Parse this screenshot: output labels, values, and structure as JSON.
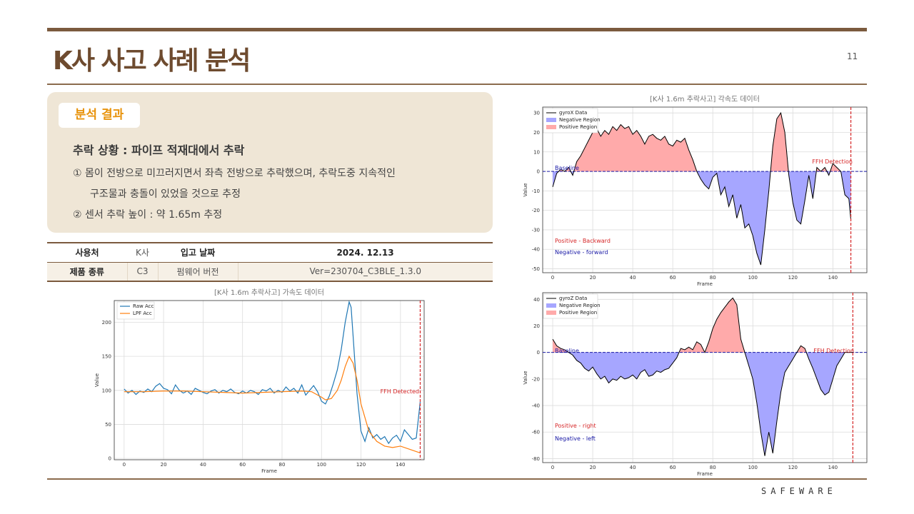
{
  "page": {
    "title": "K사 사고 사례 분석",
    "page_number": "11",
    "logo": "SAFEWARE"
  },
  "analysis": {
    "tag": "분석 결과",
    "heading": "추락 상황 : 파이프 적재대에서 추락",
    "items": [
      "①  몸이 전방으로 미끄러지면서 좌측 전방으로 추락했으며, 추락도중 지속적인",
      "구조물과 충돌이 있었을 것으로 추정",
      "②  센서 추락 높이 : 약 1.65m 추정"
    ]
  },
  "info_table": {
    "rows": [
      [
        "사용처",
        "K사",
        "입고 날짜",
        "2024. 12.13"
      ],
      [
        "제품 종류",
        "C3",
        "펌웨어 버전",
        "Ver=230704_C3BLE_1.3.0"
      ]
    ]
  },
  "colors": {
    "accent": "#7b5a3e",
    "tag": "#e8930c",
    "panel": "#efe6d6",
    "raw": "#1f77b4",
    "lpf": "#ff7f0e",
    "neg": "#a6a6ff",
    "pos": "#ffaaaa"
  },
  "chart_data": [
    {
      "type": "line",
      "title": "[K사 1.6m 추락사고] 가속도 데이터",
      "xlabel": "Frame",
      "ylabel": "Value",
      "xlim": [
        -5,
        152
      ],
      "ylim": [
        -2,
        232
      ],
      "xticks": [
        0,
        20,
        40,
        60,
        80,
        100,
        120,
        140
      ],
      "yticks": [
        0,
        50,
        100,
        150,
        200
      ],
      "series": [
        {
          "name": "Raw Acc",
          "x": [
            0,
            2,
            4,
            6,
            8,
            10,
            12,
            14,
            16,
            18,
            20,
            22,
            24,
            26,
            28,
            30,
            32,
            34,
            36,
            38,
            40,
            42,
            44,
            46,
            48,
            50,
            52,
            54,
            56,
            58,
            60,
            62,
            64,
            66,
            68,
            70,
            72,
            74,
            76,
            78,
            80,
            82,
            84,
            86,
            88,
            90,
            92,
            94,
            96,
            98,
            100,
            102,
            104,
            106,
            108,
            110,
            112,
            114,
            115,
            116,
            118,
            120,
            122,
            124,
            126,
            128,
            130,
            132,
            134,
            136,
            138,
            140,
            142,
            144,
            146,
            148,
            150
          ],
          "y": [
            102,
            96,
            100,
            94,
            99,
            97,
            102,
            98,
            106,
            110,
            103,
            101,
            95,
            108,
            100,
            96,
            99,
            94,
            103,
            100,
            97,
            95,
            99,
            101,
            96,
            100,
            98,
            102,
            97,
            95,
            99,
            96,
            100,
            98,
            94,
            101,
            99,
            103,
            96,
            100,
            97,
            105,
            99,
            103,
            96,
            108,
            93,
            100,
            107,
            98,
            84,
            80,
            92,
            110,
            130,
            160,
            200,
            230,
            222,
            180,
            95,
            40,
            25,
            45,
            30,
            35,
            28,
            32,
            22,
            30,
            34,
            25,
            42,
            35,
            28,
            30,
            83
          ]
        },
        {
          "name": "LPF Acc",
          "x": [
            0,
            10,
            20,
            30,
            40,
            50,
            60,
            70,
            80,
            90,
            95,
            100,
            102,
            105,
            108,
            110,
            112,
            114,
            116,
            118,
            120,
            124,
            128,
            132,
            136,
            140,
            145,
            150
          ],
          "y": [
            98,
            98,
            99,
            99,
            98,
            97,
            96,
            97,
            98,
            99,
            98,
            90,
            86,
            88,
            100,
            115,
            135,
            150,
            140,
            115,
            80,
            40,
            25,
            18,
            16,
            18,
            13,
            8
          ]
        }
      ],
      "annotations": [
        {
          "text": "FFH Detected",
          "x": 150,
          "line": "vertical",
          "color": "red"
        }
      ]
    },
    {
      "type": "area",
      "title": "[K사 1.6m 추락사고] 각속도 데이터",
      "xlabel": "Frame",
      "ylabel": "Value",
      "xlim": [
        -5,
        157
      ],
      "ylim": [
        -52,
        33
      ],
      "xticks": [
        0,
        20,
        40,
        60,
        80,
        100,
        120,
        140
      ],
      "yticks": [
        30,
        20,
        10,
        0,
        -10,
        -20,
        -30,
        -40,
        -50
      ],
      "baseline": 0,
      "series": [
        {
          "name": "gyroX Data",
          "x": [
            0,
            2,
            4,
            6,
            8,
            10,
            12,
            14,
            16,
            18,
            20,
            22,
            24,
            26,
            28,
            30,
            32,
            34,
            36,
            38,
            40,
            42,
            44,
            46,
            48,
            50,
            52,
            54,
            56,
            58,
            60,
            62,
            64,
            66,
            68,
            70,
            72,
            74,
            76,
            78,
            80,
            82,
            84,
            86,
            88,
            90,
            92,
            94,
            96,
            98,
            100,
            102,
            104,
            106,
            108,
            110,
            112,
            114,
            116,
            118,
            120,
            122,
            124,
            126,
            128,
            130,
            132,
            134,
            136,
            138,
            140,
            142,
            144,
            146,
            148,
            149
          ],
          "y": [
            -8,
            -1,
            1,
            0,
            2,
            -2,
            5,
            8,
            12,
            16,
            20,
            22,
            18,
            21,
            19,
            23,
            21,
            24,
            22,
            23,
            19,
            21,
            18,
            14,
            18,
            19,
            17,
            16,
            18,
            14,
            13,
            16,
            15,
            17,
            11,
            6,
            0,
            -4,
            -7,
            -9,
            -3,
            -1,
            -12,
            -8,
            -18,
            -12,
            -24,
            -17,
            -29,
            -27,
            -33,
            -42,
            -48,
            -30,
            -10,
            13,
            27,
            30,
            20,
            -2,
            -16,
            -25,
            -27,
            -15,
            -2,
            -14,
            2,
            0,
            2,
            -2,
            4,
            2,
            0,
            -12,
            -14,
            -25
          ]
        }
      ],
      "legend": [
        "gyroX Data",
        "Negative Region",
        "Positive Region"
      ],
      "annotations": [
        {
          "text": "Baseline",
          "color": "blue"
        },
        {
          "text": "FFH Detection",
          "x": 149,
          "line": "vertical",
          "color": "red"
        },
        {
          "text": "Positive - Backward",
          "color": "red"
        },
        {
          "text": "Negative - forward",
          "color": "blue"
        }
      ]
    },
    {
      "type": "area",
      "title": "",
      "xlabel": "Frame",
      "ylabel": "Value",
      "xlim": [
        -5,
        157
      ],
      "ylim": [
        -83,
        45
      ],
      "xticks": [
        0,
        20,
        40,
        60,
        80,
        100,
        120,
        140
      ],
      "yticks": [
        40,
        20,
        0,
        -20,
        -40,
        -60,
        -80
      ],
      "baseline": 0,
      "series": [
        {
          "name": "gyroZ Data",
          "x": [
            0,
            2,
            4,
            6,
            8,
            10,
            12,
            14,
            16,
            18,
            20,
            22,
            24,
            26,
            28,
            30,
            32,
            34,
            36,
            38,
            40,
            42,
            44,
            46,
            48,
            50,
            52,
            54,
            56,
            58,
            60,
            62,
            64,
            66,
            68,
            70,
            72,
            74,
            76,
            78,
            80,
            82,
            84,
            86,
            88,
            90,
            92,
            94,
            96,
            98,
            100,
            102,
            104,
            106,
            108,
            110,
            112,
            114,
            116,
            118,
            120,
            122,
            124,
            126,
            128,
            130,
            132,
            134,
            136,
            138,
            140,
            142,
            144,
            146,
            148,
            150
          ],
          "y": [
            10,
            5,
            3,
            2,
            0,
            -2,
            -6,
            -8,
            -12,
            -14,
            -11,
            -16,
            -20,
            -18,
            -23,
            -20,
            -21,
            -18,
            -20,
            -19,
            -17,
            -20,
            -15,
            -13,
            -18,
            -17,
            -14,
            -15,
            -13,
            -12,
            -8,
            -4,
            3,
            2,
            4,
            2,
            8,
            6,
            0,
            8,
            18,
            25,
            30,
            34,
            38,
            41,
            36,
            10,
            0,
            -10,
            -20,
            -38,
            -60,
            -78,
            -60,
            -76,
            -52,
            -30,
            -15,
            -10,
            -5,
            0,
            5,
            3,
            -5,
            -12,
            -20,
            -28,
            -32,
            -30,
            -20,
            -10,
            -5,
            0,
            0,
            0
          ]
        }
      ],
      "legend": [
        "gyroZ Data",
        "Negative Region",
        "Positive Region"
      ],
      "annotations": [
        {
          "text": "Baseline",
          "color": "blue"
        },
        {
          "text": "FFH Detection",
          "x": 150,
          "line": "vertical",
          "color": "red"
        },
        {
          "text": "Positive - right",
          "color": "red"
        },
        {
          "text": "Negative - left",
          "color": "blue"
        }
      ]
    }
  ]
}
